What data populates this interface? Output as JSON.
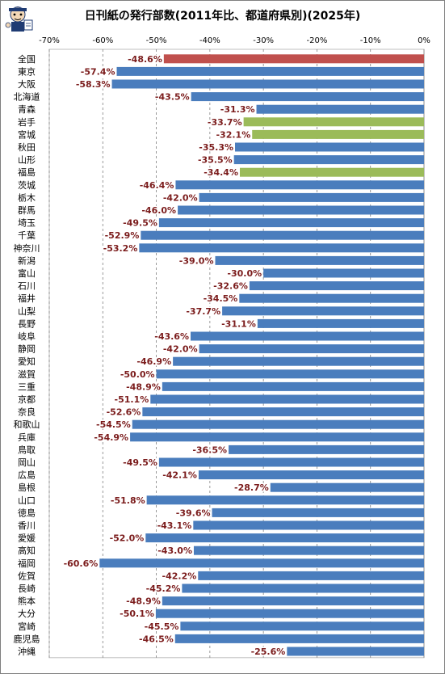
{
  "chart_data": {
    "type": "bar",
    "orientation": "horizontal",
    "title": "日刊紙の発行部数(2011年比、都道府県別)(2025年)",
    "xlabel": "",
    "ylabel": "",
    "xlim": [
      -70,
      0
    ],
    "x_ticks": [
      "-70%",
      "-60%",
      "-50%",
      "-40%",
      "-30%",
      "-20%",
      "-10%",
      "0%"
    ],
    "x_tick_values": [
      -70,
      -60,
      -50,
      -40,
      -30,
      -20,
      -10,
      0
    ],
    "grid": true,
    "legend": "none",
    "colors": {
      "default": "#4a7dbd",
      "national": "#c0504d",
      "disaster": "#9bbb59",
      "label": "#7b1c1c",
      "gridline": "#7f7f7f"
    },
    "categories": [
      "全国",
      "東京",
      "大阪",
      "北海道",
      "青森",
      "岩手",
      "宮城",
      "秋田",
      "山形",
      "福島",
      "茨城",
      "栃木",
      "群馬",
      "埼玉",
      "千葉",
      "神奈川",
      "新潟",
      "富山",
      "石川",
      "福井",
      "山梨",
      "長野",
      "岐阜",
      "静岡",
      "愛知",
      "滋賀",
      "三重",
      "京都",
      "奈良",
      "和歌山",
      "兵庫",
      "鳥取",
      "岡山",
      "広島",
      "島根",
      "山口",
      "徳島",
      "香川",
      "愛媛",
      "高知",
      "福岡",
      "佐賀",
      "長崎",
      "熊本",
      "大分",
      "宮崎",
      "鹿児島",
      "沖縄"
    ],
    "values": [
      -48.6,
      -57.4,
      -58.3,
      -43.5,
      -31.3,
      -33.7,
      -32.1,
      -35.3,
      -35.5,
      -34.4,
      -46.4,
      -42.0,
      -46.0,
      -49.5,
      -52.9,
      -53.2,
      -39.0,
      -30.0,
      -32.6,
      -34.5,
      -37.7,
      -31.1,
      -43.6,
      -42.0,
      -46.9,
      -50.0,
      -48.9,
      -51.1,
      -52.6,
      -54.5,
      -54.9,
      -36.5,
      -49.5,
      -42.1,
      -28.7,
      -51.8,
      -39.6,
      -43.1,
      -52.0,
      -43.0,
      -60.6,
      -42.2,
      -45.2,
      -48.9,
      -50.1,
      -45.5,
      -46.5,
      -25.6
    ],
    "value_labels": [
      "-48.6%",
      "-57.4%",
      "-58.3%",
      "-43.5%",
      "-31.3%",
      "-33.7%",
      "-32.1%",
      "-35.3%",
      "-35.5%",
      "-34.4%",
      "-46.4%",
      "-42.0%",
      "-46.0%",
      "-49.5%",
      "-52.9%",
      "-53.2%",
      "-39.0%",
      "-30.0%",
      "-32.6%",
      "-34.5%",
      "-37.7%",
      "-31.1%",
      "-43.6%",
      "-42.0%",
      "-46.9%",
      "-50.0%",
      "-48.9%",
      "-51.1%",
      "-52.6%",
      "-54.5%",
      "-54.9%",
      "-36.5%",
      "-49.5%",
      "-42.1%",
      "-28.7%",
      "-51.8%",
      "-39.6%",
      "-43.1%",
      "-52.0%",
      "-43.0%",
      "-60.6%",
      "-42.2%",
      "-45.2%",
      "-48.9%",
      "-50.1%",
      "-45.5%",
      "-46.5%",
      "-25.6%"
    ],
    "highlight": {
      "national": [
        "全国"
      ],
      "disaster": [
        "岩手",
        "宮城",
        "福島"
      ]
    }
  }
}
